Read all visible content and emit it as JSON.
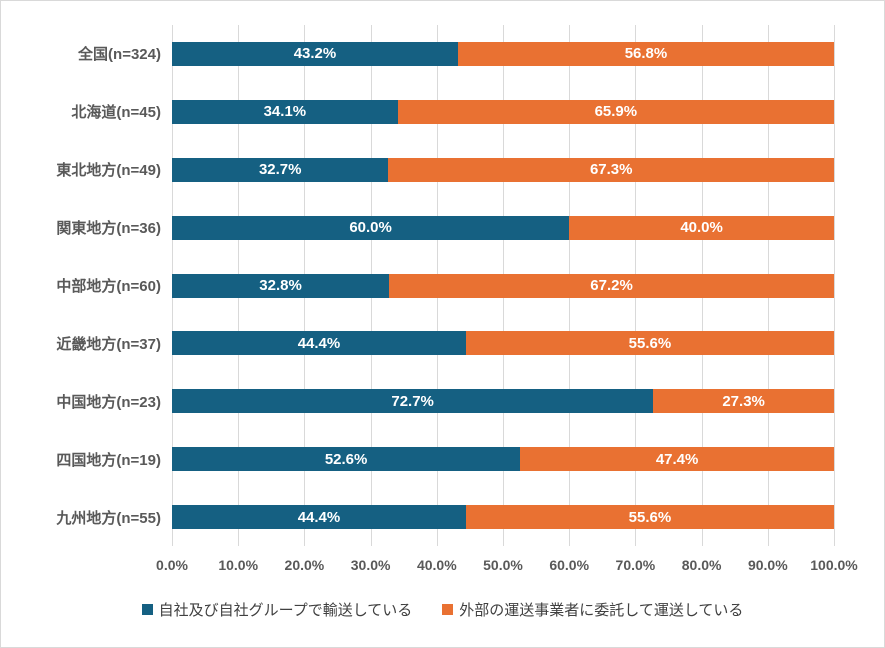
{
  "colors": {
    "series1": "#156082",
    "series2": "#E97132",
    "gridline": "#d9d9d9",
    "axis_text": "#595959",
    "data_label_text": "#ffffff",
    "chart_border": "#d9d9d9",
    "background": "#ffffff"
  },
  "chart_data": {
    "type": "bar",
    "orientation": "horizontal",
    "stacked": true,
    "title": "",
    "xlabel": "",
    "ylabel": "",
    "xlim": [
      0,
      100
    ],
    "grid": true,
    "legend_position": "bottom",
    "categories": [
      "全国(n=324)",
      "北海道(n=45)",
      "東北地方(n=49)",
      "関東地方(n=36)",
      "中部地方(n=60)",
      "近畿地方(n=37)",
      "中国地方(n=23)",
      "四国地方(n=19)",
      "九州地方(n=55)"
    ],
    "series": [
      {
        "name": "自社及び自社グループで輸送している",
        "color": "#156082",
        "values": [
          43.2,
          34.1,
          32.7,
          60.0,
          32.8,
          44.4,
          72.7,
          52.6,
          44.4
        ],
        "labels": [
          "43.2%",
          "34.1%",
          "32.7%",
          "60.0%",
          "32.8%",
          "44.4%",
          "72.7%",
          "52.6%",
          "44.4%"
        ]
      },
      {
        "name": "外部の運送事業者に委託して運送している",
        "color": "#E97132",
        "values": [
          56.8,
          65.9,
          67.3,
          40.0,
          67.2,
          55.6,
          27.3,
          47.4,
          55.6
        ],
        "labels": [
          "56.8%",
          "65.9%",
          "67.3%",
          "40.0%",
          "67.2%",
          "55.6%",
          "27.3%",
          "47.4%",
          "55.6%"
        ]
      }
    ],
    "x_ticks": [
      "0.0%",
      "10.0%",
      "20.0%",
      "30.0%",
      "40.0%",
      "50.0%",
      "60.0%",
      "70.0%",
      "80.0%",
      "90.0%",
      "100.0%"
    ]
  }
}
